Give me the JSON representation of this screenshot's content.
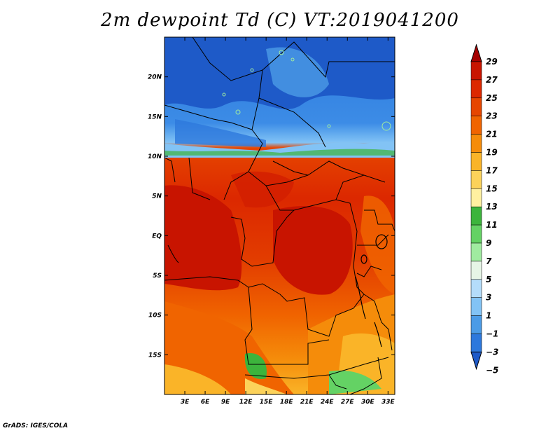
{
  "title": "2m dewpoint Td (C) VT:2019041200",
  "footer": "GrADS: IGES/COLA",
  "map": {
    "lat_ticks": [
      "20N",
      "15N",
      "10N",
      "5N",
      "EQ",
      "5S",
      "10S",
      "15S"
    ],
    "lat_values": [
      20,
      15,
      10,
      5,
      0,
      -5,
      -10,
      -15
    ],
    "lon_ticks": [
      "3E",
      "6E",
      "9E",
      "12E",
      "15E",
      "18E",
      "21E",
      "24E",
      "27E",
      "30E",
      "33E"
    ],
    "lon_values": [
      3,
      6,
      9,
      12,
      15,
      18,
      21,
      24,
      27,
      30,
      33
    ],
    "lon_range": [
      0,
      34
    ],
    "lat_range": [
      -20,
      25
    ]
  },
  "colorbar": {
    "labels": [
      "29",
      "27",
      "25",
      "23",
      "21",
      "19",
      "17",
      "15",
      "13",
      "11",
      "9",
      "7",
      "5",
      "3",
      "1",
      "−1",
      "−3",
      "−5"
    ],
    "colors": [
      "#a50000",
      "#c81400",
      "#dc2800",
      "#e64600",
      "#f06400",
      "#f58c0a",
      "#fab428",
      "#fcd25a",
      "#fff0a0",
      "#3cb43c",
      "#64d264",
      "#a0eba0",
      "#e6f5e6",
      "#b4dcfa",
      "#82c3f5",
      "#4b9be6",
      "#2d78dc",
      "#1e5ac8"
    ]
  }
}
